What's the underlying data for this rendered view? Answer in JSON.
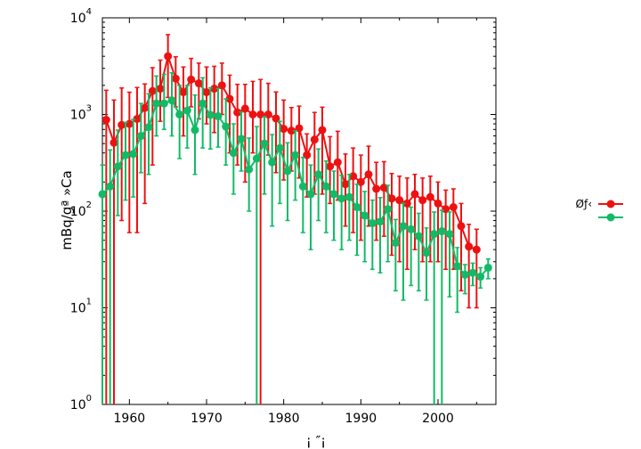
{
  "chart_data": {
    "type": "scatter",
    "title": "",
    "xlabel": "¡    ″¡",
    "ylabel": "mBq/gª  »Ca",
    "xlim": [
      1956.5,
      2007.5
    ],
    "ylim": [
      1,
      10000
    ],
    "y_scale": "log",
    "grid": false,
    "legend_position": "right",
    "x_ticks": [
      "1960",
      "1970",
      "1980",
      "1990",
      "2000"
    ],
    "y_ticks": [
      {
        "base": "10",
        "exp": "0"
      },
      {
        "base": "10",
        "exp": "1"
      },
      {
        "base": "10",
        "exp": "2"
      },
      {
        "base": "10",
        "exp": "3"
      },
      {
        "base": "10",
        "exp": "4"
      }
    ],
    "series": [
      {
        "name": "Øƒ‹",
        "color": "#ee1111",
        "x": [
          1957,
          1958,
          1959,
          1960,
          1961,
          1962,
          1963,
          1964,
          1965,
          1966,
          1967,
          1968,
          1969,
          1970,
          1971,
          1972,
          1973,
          1974,
          1975,
          1976,
          1977,
          1978,
          1979,
          1980,
          1981,
          1982,
          1983,
          1984,
          1985,
          1986,
          1987,
          1988,
          1989,
          1990,
          1991,
          1992,
          1993,
          1994,
          1995,
          1996,
          1997,
          1998,
          1999,
          2000,
          2001,
          2002,
          2003,
          2004,
          2005
        ],
        "y": [
          880,
          510,
          780,
          800,
          900,
          1170,
          1750,
          1850,
          4000,
          2350,
          1700,
          2300,
          2100,
          1700,
          1850,
          2000,
          1450,
          1050,
          1150,
          1000,
          1000,
          1000,
          910,
          710,
          680,
          720,
          380,
          550,
          690,
          290,
          320,
          190,
          230,
          200,
          240,
          170,
          175,
          135,
          130,
          120,
          150,
          130,
          140,
          120,
          105,
          110,
          70,
          43,
          40
        ],
        "err_low": [
          880,
          510,
          700,
          740,
          840,
          1050,
          1450,
          1000,
          2500,
          1150,
          1100,
          1100,
          1200,
          900,
          1200,
          1000,
          1050,
          750,
          950,
          600,
          999,
          620,
          660,
          500,
          420,
          500,
          240,
          400,
          540,
          170,
          190,
          120,
          170,
          150,
          170,
          120,
          120,
          100,
          100,
          95,
          110,
          100,
          110,
          90,
          80,
          85,
          55,
          33,
          30
        ],
        "err_high": [
          900,
          900,
          1100,
          900,
          1000,
          900,
          1300,
          1800,
          2700,
          1600,
          1400,
          1500,
          1300,
          1400,
          1300,
          1400,
          1100,
          1000,
          900,
          1200,
          1300,
          1100,
          800,
          700,
          500,
          500,
          250,
          500,
          500,
          300,
          350,
          200,
          220,
          180,
          230,
          150,
          150,
          110,
          100,
          100,
          90,
          90,
          90,
          80,
          60,
          60,
          50,
          30,
          25
        ]
      },
      {
        "name": "",
        "color": "#11bb66",
        "x": [
          1956.5,
          1957.5,
          1958.5,
          1959.5,
          1960.5,
          1961.5,
          1962.5,
          1963.5,
          1964.5,
          1965.5,
          1966.5,
          1967.5,
          1968.5,
          1969.5,
          1970.5,
          1971.5,
          1972.5,
          1973.5,
          1974.5,
          1975.5,
          1976.5,
          1977.5,
          1978.5,
          1979.5,
          1980.5,
          1981.5,
          1982.5,
          1983.5,
          1984.5,
          1985.5,
          1986.5,
          1987.5,
          1988.5,
          1989.5,
          1990.5,
          1991.5,
          1992.5,
          1993.5,
          1994.5,
          1995.5,
          1996.5,
          1997.5,
          1998.5,
          1999.5,
          2000.5,
          2001.5,
          2002.5,
          2003.5,
          2004.5,
          2005.5,
          2006.5
        ],
        "y": [
          150,
          180,
          290,
          380,
          390,
          600,
          740,
          1300,
          1300,
          1400,
          1000,
          1100,
          690,
          1300,
          990,
          960,
          750,
          400,
          560,
          270,
          350,
          500,
          320,
          450,
          260,
          380,
          180,
          150,
          240,
          180,
          150,
          135,
          140,
          110,
          90,
          75,
          78,
          105,
          47,
          70,
          65,
          55,
          37,
          58,
          62,
          58,
          27,
          22,
          23,
          21,
          26
        ],
        "err_low": [
          149.5,
          179.5,
          200,
          250,
          250,
          350,
          500,
          700,
          600,
          800,
          650,
          650,
          450,
          850,
          550,
          500,
          450,
          250,
          300,
          170,
          349.5,
          350,
          250,
          330,
          180,
          250,
          120,
          110,
          160,
          120,
          100,
          95,
          90,
          75,
          60,
          50,
          55,
          75,
          32,
          58,
          48,
          40,
          25,
          57.5,
          61.5,
          45,
          18,
          8,
          6,
          5,
          6
        ],
        "err_high": [
          150,
          250,
          400,
          450,
          500,
          700,
          900,
          1200,
          1300,
          1300,
          1000,
          900,
          900,
          1100,
          900,
          900,
          700,
          400,
          500,
          300,
          400,
          450,
          300,
          400,
          250,
          300,
          180,
          150,
          200,
          150,
          110,
          100,
          100,
          80,
          70,
          55,
          60,
          80,
          35,
          50,
          45,
          40,
          30,
          40,
          40,
          40,
          15,
          6,
          6,
          5,
          6
        ]
      }
    ]
  }
}
